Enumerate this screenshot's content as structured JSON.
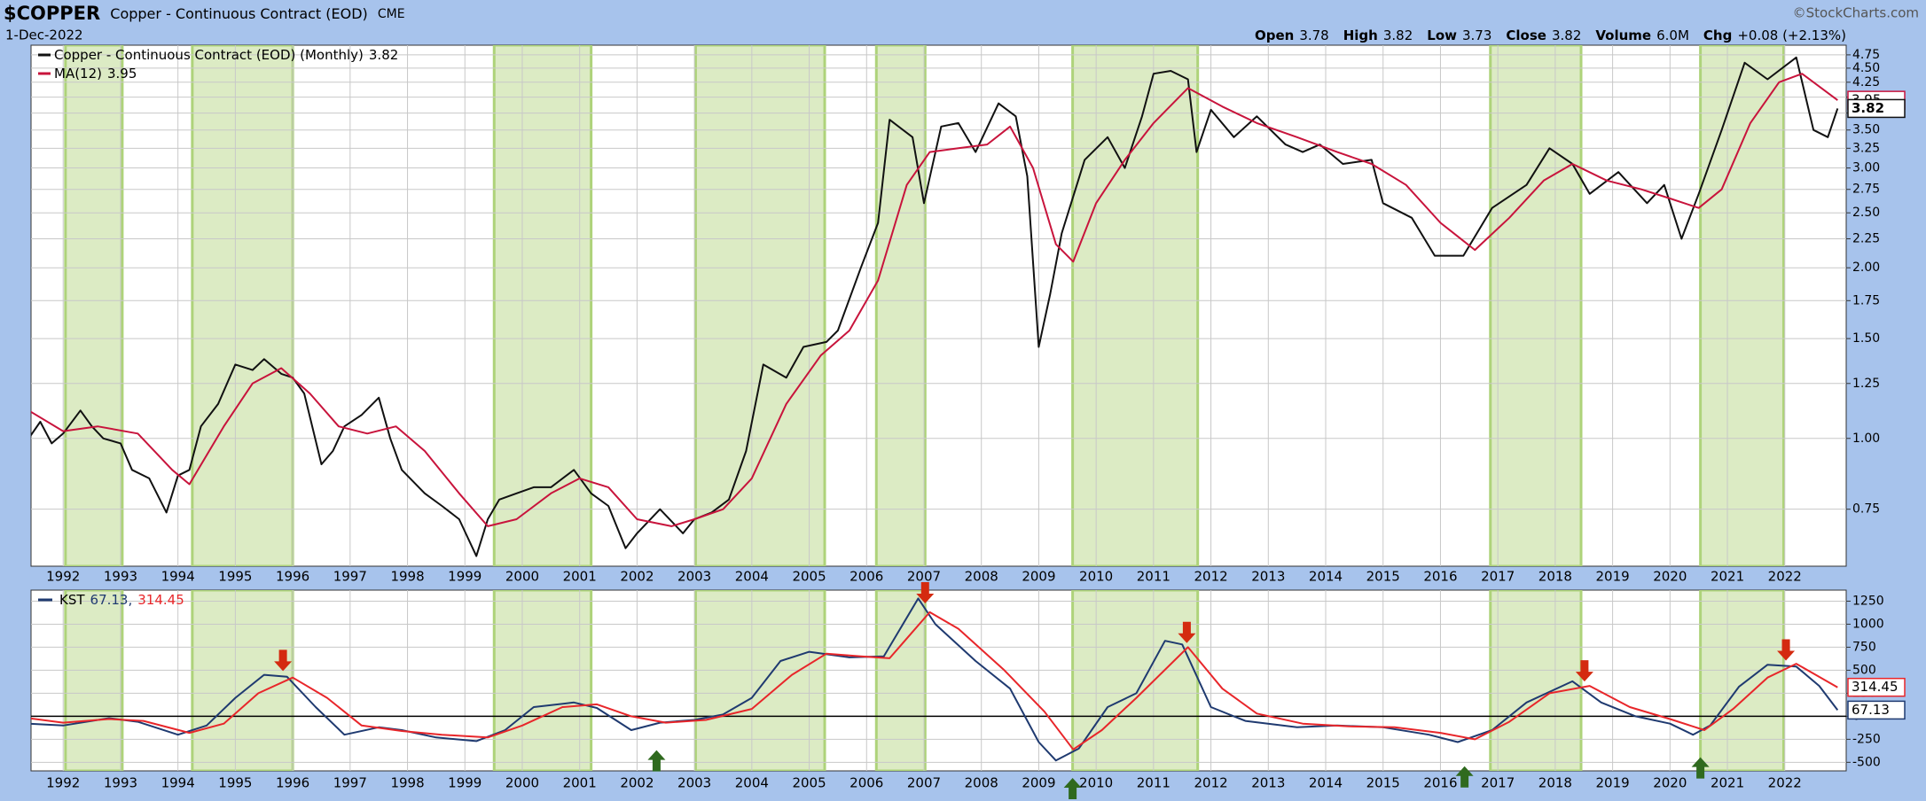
{
  "header": {
    "symbol": "$COPPER",
    "name": "Copper - Continuous Contract (EOD)",
    "exchange": "CME",
    "date": "1-Dec-2022",
    "source": "©StockCharts.com",
    "quote": [
      {
        "label": "Open",
        "value": "3.78"
      },
      {
        "label": "High",
        "value": "3.82"
      },
      {
        "label": "Low",
        "value": "3.73"
      },
      {
        "label": "Close",
        "value": "3.82"
      },
      {
        "label": "Volume",
        "value": "6.0M"
      },
      {
        "label": "Chg",
        "value": "+0.08 (+2.13%)"
      }
    ]
  },
  "chart_data": [
    {
      "type": "line",
      "log_scale": true,
      "grid": true,
      "legend": "upper left",
      "xlim": [
        1991.44,
        2023.07
      ],
      "xticks": [
        1992,
        1993,
        1994,
        1995,
        1996,
        1997,
        1998,
        1999,
        2000,
        2001,
        2002,
        2003,
        2004,
        2005,
        2006,
        2007,
        2008,
        2009,
        2010,
        2011,
        2012,
        2013,
        2014,
        2015,
        2016,
        2017,
        2018,
        2019,
        2020,
        2021,
        2022
      ],
      "ylim": [
        0.595,
        4.94
      ],
      "yticks": [
        0.75,
        {
          "value": 1,
          "label": "1.00"
        },
        1.25,
        {
          "value": 1.5,
          "label": "1.50"
        },
        1.75,
        {
          "value": 2,
          "label": "2.00"
        },
        2.25,
        {
          "value": 2.5,
          "label": "2.50"
        },
        2.75,
        {
          "value": 3,
          "label": "3.00"
        },
        3.25,
        {
          "value": 3.5,
          "label": "3.50"
        },
        3.75,
        {
          "value": 4,
          "label": "4.00"
        },
        4.25,
        {
          "value": 4.5,
          "label": "4.50"
        },
        4.75
      ],
      "shaded_ranges": [
        [
          1992.04,
          1993.03
        ],
        [
          1994.25,
          1996.0
        ],
        [
          1999.51,
          2001.2
        ],
        [
          2003.02,
          2005.27
        ],
        [
          2006.17,
          2007.02
        ],
        [
          2009.59,
          2011.77
        ],
        [
          2016.87,
          2018.45
        ],
        [
          2020.53,
          2021.98
        ]
      ],
      "shade_color": "#dcebc4",
      "shade_border": "#aed37a",
      "series": [
        {
          "name": "Copper - Continuous Contract (EOD) (Monthly)",
          "color": "#111111",
          "last_value": 3.82,
          "x": [
            1991.4,
            1991.6,
            1991.8,
            1992.0,
            1992.3,
            1992.5,
            1992.7,
            1993.0,
            1993.2,
            1993.5,
            1993.8,
            1994.0,
            1994.2,
            1994.4,
            1994.7,
            1995.0,
            1995.3,
            1995.5,
            1995.8,
            1996.0,
            1996.2,
            1996.5,
            1996.7,
            1996.9,
            1997.2,
            1997.5,
            1997.7,
            1997.9,
            1998.3,
            1998.6,
            1998.9,
            1999.2,
            1999.4,
            1999.6,
            1999.9,
            2000.2,
            2000.5,
            2000.9,
            2001.2,
            2001.5,
            2001.8,
            2002.0,
            2002.4,
            2002.8,
            2003.0,
            2003.3,
            2003.6,
            2003.9,
            2004.2,
            2004.6,
            2004.9,
            2005.3,
            2005.5,
            2005.9,
            2006.2,
            2006.4,
            2006.8,
            2007.0,
            2007.3,
            2007.6,
            2007.9,
            2008.3,
            2008.6,
            2008.8,
            2009.0,
            2009.2,
            2009.4,
            2009.8,
            2010.2,
            2010.5,
            2010.8,
            2011.0,
            2011.3,
            2011.6,
            2011.75,
            2012.0,
            2012.4,
            2012.8,
            2013.3,
            2013.6,
            2013.9,
            2014.3,
            2014.8,
            2015.0,
            2015.5,
            2015.9,
            2016.4,
            2016.9,
            2017.5,
            2017.9,
            2018.3,
            2018.6,
            2019.1,
            2019.6,
            2019.9,
            2020.2,
            2020.5,
            2020.9,
            2021.3,
            2021.7,
            2022.2,
            2022.5,
            2022.75,
            2022.92
          ],
          "values": [
            1.0,
            1.07,
            0.98,
            1.02,
            1.12,
            1.05,
            1.0,
            0.98,
            0.88,
            0.85,
            0.74,
            0.86,
            0.88,
            1.05,
            1.15,
            1.35,
            1.32,
            1.38,
            1.3,
            1.28,
            1.2,
            0.9,
            0.95,
            1.05,
            1.1,
            1.18,
            1.0,
            0.88,
            0.8,
            0.76,
            0.72,
            0.62,
            0.72,
            0.78,
            0.8,
            0.82,
            0.82,
            0.88,
            0.8,
            0.76,
            0.64,
            0.68,
            0.75,
            0.68,
            0.72,
            0.74,
            0.78,
            0.95,
            1.35,
            1.28,
            1.45,
            1.48,
            1.55,
            2.0,
            2.4,
            3.65,
            3.4,
            2.6,
            3.55,
            3.6,
            3.2,
            3.9,
            3.7,
            2.9,
            1.45,
            1.8,
            2.3,
            3.1,
            3.4,
            3.0,
            3.7,
            4.4,
            4.45,
            4.3,
            3.2,
            3.8,
            3.4,
            3.7,
            3.3,
            3.2,
            3.3,
            3.05,
            3.1,
            2.6,
            2.45,
            2.1,
            2.1,
            2.55,
            2.8,
            3.25,
            3.05,
            2.7,
            2.95,
            2.6,
            2.8,
            2.25,
            2.7,
            3.5,
            4.6,
            4.3,
            4.7,
            3.5,
            3.4,
            3.82
          ]
        },
        {
          "name": "MA(12)",
          "color": "#c8143c",
          "last_value": 3.95,
          "x": [
            1991.4,
            1992.0,
            1992.6,
            1993.3,
            1993.9,
            1994.2,
            1994.8,
            1995.3,
            1995.8,
            1996.3,
            1996.8,
            1997.3,
            1997.8,
            1998.3,
            1998.9,
            1999.4,
            1999.9,
            2000.5,
            2001.0,
            2001.5,
            2002.0,
            2002.6,
            2003.0,
            2003.5,
            2004.0,
            2004.6,
            2005.2,
            2005.7,
            2006.2,
            2006.7,
            2007.1,
            2007.6,
            2008.1,
            2008.5,
            2008.9,
            2009.3,
            2009.6,
            2010.0,
            2010.5,
            2011.0,
            2011.6,
            2012.2,
            2012.8,
            2013.5,
            2014.2,
            2014.8,
            2015.4,
            2016.0,
            2016.6,
            2017.2,
            2017.8,
            2018.3,
            2018.9,
            2019.5,
            2020.0,
            2020.5,
            2020.9,
            2021.4,
            2021.9,
            2022.3,
            2022.92
          ],
          "values": [
            1.12,
            1.03,
            1.05,
            1.02,
            0.88,
            0.83,
            1.05,
            1.25,
            1.33,
            1.2,
            1.05,
            1.02,
            1.05,
            0.95,
            0.8,
            0.7,
            0.72,
            0.8,
            0.85,
            0.82,
            0.72,
            0.7,
            0.72,
            0.75,
            0.85,
            1.15,
            1.4,
            1.55,
            1.9,
            2.8,
            3.2,
            3.25,
            3.3,
            3.55,
            3.0,
            2.2,
            2.05,
            2.6,
            3.1,
            3.6,
            4.15,
            3.85,
            3.6,
            3.4,
            3.2,
            3.05,
            2.8,
            2.4,
            2.15,
            2.45,
            2.85,
            3.05,
            2.85,
            2.75,
            2.65,
            2.55,
            2.75,
            3.6,
            4.25,
            4.4,
            3.95
          ]
        }
      ]
    },
    {
      "type": "line",
      "grid": true,
      "legend": [
        "KST",
        "67.13,",
        "314.45"
      ],
      "reference_line": 0,
      "xlim": [
        1991.44,
        2023.07
      ],
      "xticks": [
        1992,
        1993,
        1994,
        1995,
        1996,
        1997,
        1998,
        1999,
        2000,
        2001,
        2002,
        2003,
        2004,
        2005,
        2006,
        2007,
        2008,
        2009,
        2010,
        2011,
        2012,
        2013,
        2014,
        2015,
        2016,
        2017,
        2018,
        2019,
        2020,
        2021,
        2022
      ],
      "ylim": [
        -593,
        1370
      ],
      "yticks": [
        -500,
        -250,
        0,
        250,
        500,
        750,
        1000,
        1250
      ],
      "sell_signals": [
        1995.83,
        2007.02,
        2011.58,
        2018.51,
        2022.02
      ],
      "sell_color": "#d42a10",
      "buy_signals": [
        2002.34,
        2009.59,
        2016.42,
        2020.53
      ],
      "buy_color": "#2f6a1e",
      "series": [
        {
          "color": "#1f3a70",
          "last_value": 67.13,
          "x": [
            1991.4,
            1992.0,
            1992.8,
            1993.3,
            1994.0,
            1994.5,
            1995.0,
            1995.5,
            1995.9,
            1996.4,
            1996.9,
            1997.5,
            1997.9,
            1998.5,
            1999.2,
            1999.7,
            2000.2,
            2000.9,
            2001.3,
            2001.9,
            2002.4,
            2003.0,
            2003.5,
            2004.0,
            2004.5,
            2005.0,
            2005.7,
            2006.3,
            2006.9,
            2007.2,
            2007.9,
            2008.5,
            2009.0,
            2009.3,
            2009.7,
            2010.2,
            2010.7,
            2011.2,
            2011.5,
            2012.0,
            2012.6,
            2013.5,
            2014.2,
            2015.0,
            2015.8,
            2016.3,
            2016.9,
            2017.5,
            2018.3,
            2018.8,
            2019.4,
            2020.0,
            2020.4,
            2020.7,
            2021.2,
            2021.7,
            2022.2,
            2022.6,
            2022.92
          ],
          "values": [
            -80,
            -100,
            -20,
            -60,
            -200,
            -100,
            200,
            450,
            430,
            100,
            -200,
            -120,
            -150,
            -230,
            -270,
            -150,
            100,
            150,
            90,
            -150,
            -70,
            -40,
            20,
            200,
            600,
            700,
            640,
            650,
            1280,
            1000,
            600,
            300,
            -280,
            -480,
            -350,
            100,
            250,
            820,
            780,
            100,
            -50,
            -120,
            -100,
            -120,
            -200,
            -280,
            -150,
            150,
            380,
            150,
            0,
            -80,
            -200,
            -100,
            320,
            560,
            540,
            330,
            67.13
          ]
        },
        {
          "color": "#e8262a",
          "last_value": 314.45,
          "x": [
            1991.4,
            1992.0,
            1992.8,
            1993.4,
            1994.2,
            1994.8,
            1995.4,
            1996.0,
            1996.6,
            1997.2,
            1997.9,
            1998.6,
            1999.4,
            2000.0,
            2000.7,
            2001.3,
            2001.9,
            2002.5,
            2003.2,
            2004.0,
            2004.7,
            2005.3,
            2005.9,
            2006.4,
            2007.1,
            2007.6,
            2008.4,
            2009.1,
            2009.6,
            2010.1,
            2010.7,
            2011.6,
            2012.2,
            2012.8,
            2013.6,
            2014.4,
            2015.2,
            2016.0,
            2016.6,
            2017.2,
            2017.9,
            2018.6,
            2019.3,
            2020.0,
            2020.6,
            2021.1,
            2021.7,
            2022.2,
            2022.92
          ],
          "values": [
            -20,
            -70,
            -30,
            -50,
            -180,
            -80,
            250,
            420,
            200,
            -100,
            -160,
            -200,
            -230,
            -100,
            100,
            130,
            0,
            -70,
            -40,
            80,
            450,
            680,
            650,
            630,
            1130,
            950,
            500,
            50,
            -360,
            -150,
            200,
            750,
            300,
            30,
            -80,
            -110,
            -120,
            -180,
            -250,
            -60,
            250,
            330,
            100,
            -30,
            -150,
            80,
            420,
            570,
            314.45
          ]
        }
      ]
    }
  ]
}
